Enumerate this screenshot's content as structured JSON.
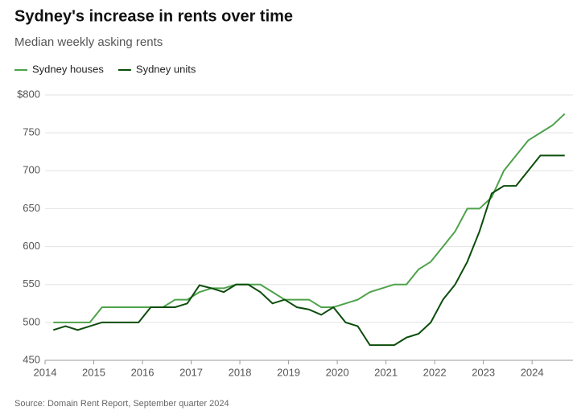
{
  "chart_data": {
    "type": "line",
    "title": "Sydney's increase in rents over time",
    "subtitle": "Median weekly asking rents",
    "source": "Source: Domain Rent Report, September quarter 2024",
    "x": [
      2014.17,
      2014.42,
      2014.67,
      2014.92,
      2015.17,
      2015.42,
      2015.67,
      2015.92,
      2016.17,
      2016.42,
      2016.67,
      2016.92,
      2017.17,
      2017.42,
      2017.67,
      2017.92,
      2018.17,
      2018.42,
      2018.67,
      2018.92,
      2019.17,
      2019.42,
      2019.67,
      2019.92,
      2020.17,
      2020.42,
      2020.67,
      2020.92,
      2021.17,
      2021.42,
      2021.67,
      2021.92,
      2022.17,
      2022.42,
      2022.67,
      2022.92,
      2023.17,
      2023.42,
      2023.67,
      2023.92,
      2024.17,
      2024.42,
      2024.67
    ],
    "series": [
      {
        "name": "Sydney houses",
        "color": "#4ea24a",
        "values": [
          500,
          500,
          500,
          500,
          520,
          520,
          520,
          520,
          520,
          520,
          530,
          530,
          540,
          545,
          545,
          550,
          550,
          550,
          540,
          530,
          530,
          530,
          520,
          520,
          525,
          530,
          540,
          545,
          550,
          550,
          570,
          580,
          600,
          620,
          650,
          650,
          665,
          700,
          720,
          740,
          750,
          760,
          775
        ]
      },
      {
        "name": "Sydney units",
        "color": "#0b4d0b",
        "values": [
          490,
          495,
          490,
          495,
          500,
          500,
          500,
          500,
          520,
          520,
          520,
          525,
          549,
          545,
          540,
          550,
          550,
          540,
          525,
          530,
          520,
          517,
          510,
          520,
          500,
          495,
          470,
          470,
          470,
          480,
          485,
          500,
          530,
          550,
          580,
          620,
          670,
          680,
          680,
          700,
          720,
          720,
          720
        ]
      }
    ],
    "xlim": [
      2014,
      2024.84
    ],
    "xticks": [
      2014,
      2015,
      2016,
      2017,
      2018,
      2019,
      2020,
      2021,
      2022,
      2023,
      2024
    ],
    "ylim": [
      450,
      800
    ],
    "yticks": [
      450,
      500,
      550,
      600,
      650,
      700,
      750,
      {
        "value": 800,
        "label": "$800"
      }
    ],
    "grid": true
  }
}
